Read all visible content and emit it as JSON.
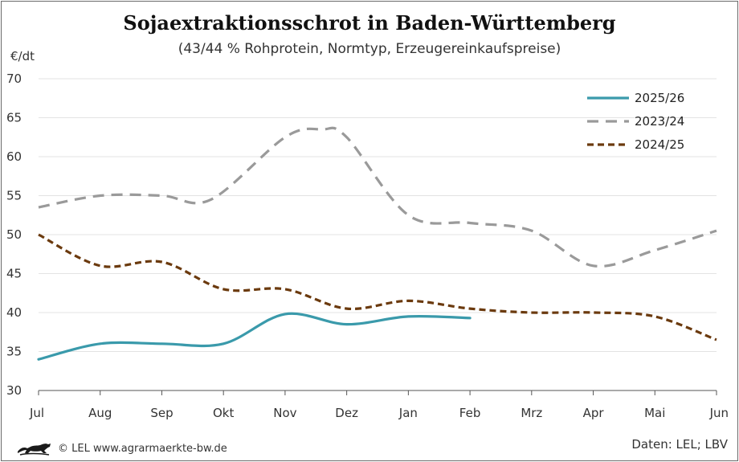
{
  "chart_data": {
    "type": "line",
    "title": "Sojaextraktionsschrot in Baden-Württemberg",
    "subtitle": "(43/44 % Rohprotein, Normtyp, Erzeugereinkaufspreise)",
    "ylabel": "€/dt",
    "xlabel": "",
    "ylim": [
      30,
      70
    ],
    "yticks": [
      30,
      35,
      40,
      45,
      50,
      55,
      60,
      65,
      70
    ],
    "grid": true,
    "legend_position": "top-right",
    "categories": [
      "Jul",
      "Aug",
      "Sep",
      "Okt",
      "Nov",
      "Dez",
      "Jan",
      "Feb",
      "Mrz",
      "Apr",
      "Mai",
      "Jun"
    ],
    "series": [
      {
        "name": "2025/26",
        "color": "#3a9aab",
        "style": "solid",
        "points": [
          [
            0,
            34.0
          ],
          [
            1,
            36.0
          ],
          [
            2,
            36.0
          ],
          [
            3,
            36.0
          ],
          [
            4,
            39.8
          ],
          [
            5,
            38.5
          ],
          [
            6,
            39.5
          ],
          [
            7,
            39.3
          ]
        ]
      },
      {
        "name": "2023/24",
        "color": "#9a9a9a",
        "style": "dashed",
        "points": [
          [
            0,
            53.5
          ],
          [
            1,
            55.0
          ],
          [
            2,
            55.0
          ],
          [
            2.8,
            54.5
          ],
          [
            4,
            62.5
          ],
          [
            4.6,
            63.5
          ],
          [
            5,
            62.5
          ],
          [
            6,
            52.5
          ],
          [
            7,
            51.5
          ],
          [
            8,
            50.5
          ],
          [
            9,
            46.0
          ],
          [
            10,
            48.0
          ],
          [
            11,
            50.5
          ]
        ]
      },
      {
        "name": "2024/25",
        "color": "#6b3a0e",
        "style": "dotted",
        "points": [
          [
            0,
            50.0
          ],
          [
            1,
            46.0
          ],
          [
            2,
            46.5
          ],
          [
            3,
            43.0
          ],
          [
            4,
            43.0
          ],
          [
            5,
            40.5
          ],
          [
            6,
            41.5
          ],
          [
            7,
            40.5
          ],
          [
            8,
            40.0
          ],
          [
            9,
            40.0
          ],
          [
            10,
            39.5
          ],
          [
            11,
            36.5
          ]
        ]
      }
    ]
  },
  "footer": {
    "copyright": "© LEL www.agrarmaerkte-bw.de",
    "source": "Daten: LEL; LBV"
  }
}
